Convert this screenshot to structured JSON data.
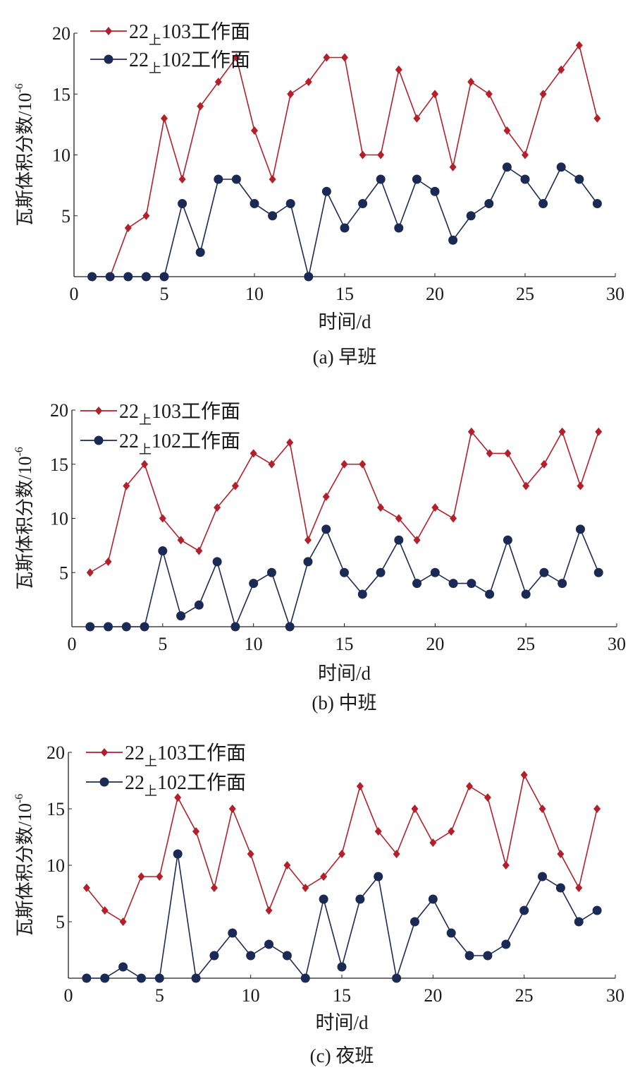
{
  "colors": {
    "series1": "#b3202a",
    "series2": "#1b2a55"
  },
  "chart_data": [
    {
      "type": "line",
      "caption": "(a) 早班",
      "xlabel": "时间/d",
      "ylabel": "瓦斯体积分数/10",
      "ylabel_exp": "-6",
      "xlim": [
        0,
        30
      ],
      "ylim": [
        0,
        20
      ],
      "xticks": [
        0,
        5,
        10,
        15,
        20,
        25,
        30
      ],
      "yticks": [
        5,
        10,
        15,
        20
      ],
      "legend_position": "top-left",
      "x": [
        1,
        2,
        3,
        4,
        5,
        6,
        7,
        8,
        9,
        10,
        11,
        12,
        13,
        14,
        15,
        16,
        17,
        18,
        19,
        20,
        21,
        22,
        23,
        24,
        25,
        26,
        27,
        28,
        29
      ],
      "series": [
        {
          "name": "22上103工作面",
          "name_main": "22",
          "name_sub": "上",
          "name_rest": "103工作面",
          "marker": "diamond",
          "values": [
            0,
            0,
            4,
            5,
            13,
            8,
            14,
            16,
            18,
            12,
            8,
            15,
            16,
            18,
            18,
            10,
            10,
            17,
            13,
            15,
            9,
            16,
            15,
            12,
            10,
            15,
            17,
            19,
            13
          ]
        },
        {
          "name": "22上102工作面",
          "name_main": "22",
          "name_sub": "上",
          "name_rest": "102工作面",
          "marker": "circle",
          "values": [
            0,
            0,
            0,
            0,
            0,
            6,
            2,
            8,
            8,
            6,
            5,
            6,
            0,
            7,
            4,
            6,
            8,
            4,
            8,
            7,
            3,
            5,
            6,
            9,
            8,
            6,
            9,
            8,
            6
          ]
        }
      ]
    },
    {
      "type": "line",
      "caption": "(b) 中班",
      "xlabel": "时间/d",
      "ylabel": "瓦斯体积分数/10",
      "ylabel_exp": "-6",
      "xlim": [
        0,
        30
      ],
      "ylim": [
        0,
        20
      ],
      "xticks": [
        0,
        5,
        10,
        15,
        20,
        25,
        30
      ],
      "yticks": [
        5,
        10,
        15,
        20
      ],
      "legend_position": "top-left",
      "x": [
        1,
        2,
        3,
        4,
        5,
        6,
        7,
        8,
        9,
        10,
        11,
        12,
        13,
        14,
        15,
        16,
        17,
        18,
        19,
        20,
        21,
        22,
        23,
        24,
        25,
        26,
        27,
        28,
        29
      ],
      "series": [
        {
          "name": "22上103工作面",
          "name_main": "22",
          "name_sub": "上",
          "name_rest": "103工作面",
          "marker": "diamond",
          "values": [
            5,
            6,
            13,
            15,
            10,
            8,
            7,
            11,
            13,
            16,
            15,
            17,
            8,
            12,
            15,
            15,
            11,
            10,
            8,
            11,
            10,
            18,
            16,
            16,
            13,
            15,
            18,
            13,
            18
          ]
        },
        {
          "name": "22上102工作面",
          "name_main": "22",
          "name_sub": "上",
          "name_rest": "102工作面",
          "marker": "circle",
          "values": [
            0,
            0,
            0,
            0,
            7,
            1,
            2,
            6,
            0,
            4,
            5,
            0,
            6,
            9,
            5,
            3,
            5,
            8,
            4,
            5,
            4,
            4,
            3,
            8,
            3,
            5,
            4,
            9,
            5
          ]
        }
      ]
    },
    {
      "type": "line",
      "caption": "(c) 夜班",
      "xlabel": "时间/d",
      "ylabel": "瓦斯体积分数/10",
      "ylabel_exp": "-6",
      "xlim": [
        0,
        30
      ],
      "ylim": [
        0,
        20
      ],
      "xticks": [
        0,
        5,
        10,
        15,
        20,
        25,
        30
      ],
      "yticks": [
        5,
        10,
        15,
        20
      ],
      "legend_position": "top-left",
      "x": [
        1,
        2,
        3,
        4,
        5,
        6,
        7,
        8,
        9,
        10,
        11,
        12,
        13,
        14,
        15,
        16,
        17,
        18,
        19,
        20,
        21,
        22,
        23,
        24,
        25,
        26,
        27,
        28,
        29
      ],
      "series": [
        {
          "name": "22上103工作面",
          "name_main": "22",
          "name_sub": "上",
          "name_rest": "103工作面",
          "marker": "diamond",
          "values": [
            8,
            6,
            5,
            9,
            9,
            16,
            13,
            8,
            15,
            11,
            6,
            10,
            8,
            9,
            11,
            17,
            13,
            11,
            15,
            12,
            13,
            17,
            16,
            10,
            18,
            15,
            11,
            8,
            15
          ]
        },
        {
          "name": "22上102工作面",
          "name_main": "22",
          "name_sub": "上",
          "name_rest": "102工作面",
          "marker": "circle",
          "values": [
            0,
            0,
            1,
            0,
            0,
            11,
            0,
            2,
            4,
            2,
            3,
            2,
            0,
            7,
            1,
            7,
            9,
            0,
            5,
            7,
            4,
            2,
            2,
            3,
            6,
            9,
            8,
            5,
            6
          ]
        }
      ]
    }
  ]
}
